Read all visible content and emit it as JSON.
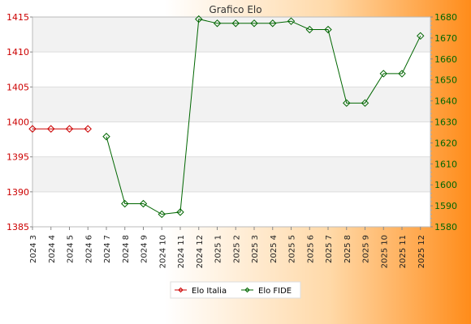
{
  "chart_data": {
    "type": "line",
    "title": "Grafico Elo",
    "categories": [
      "2024 3",
      "2024 4",
      "2024 5",
      "2024 6",
      "2024 7",
      "2024 8",
      "2024 9",
      "2024 10",
      "2024 11",
      "2024 12",
      "2025 1",
      "2025 2",
      "2025 3",
      "2025 4",
      "2025 5",
      "2025 6",
      "2025 7",
      "2025 8",
      "2025 9",
      "2025 10",
      "2025 11",
      "2025 12"
    ],
    "y_left": {
      "min": 1385,
      "max": 1415,
      "ticks": [
        1385,
        1390,
        1395,
        1400,
        1405,
        1410,
        1415
      ]
    },
    "y_right": {
      "min": 1580,
      "max": 1680,
      "ticks": [
        1580,
        1590,
        1600,
        1610,
        1620,
        1630,
        1640,
        1650,
        1660,
        1670,
        1680
      ]
    },
    "series": [
      {
        "name": "Elo Italia",
        "axis": "left",
        "color": "#cc0000",
        "values": [
          1399,
          1399,
          1399,
          1399,
          null,
          null,
          null,
          null,
          null,
          null,
          null,
          null,
          null,
          null,
          null,
          null,
          null,
          null,
          null,
          null,
          null,
          null
        ]
      },
      {
        "name": "Elo FIDE",
        "axis": "right",
        "color": "#006600",
        "values": [
          null,
          null,
          null,
          null,
          1623,
          1591,
          1591,
          1586,
          1587,
          1679,
          1677,
          1677,
          1677,
          1677,
          1678,
          1674,
          1674,
          1639,
          1639,
          1653,
          1653,
          1671
        ]
      }
    ],
    "grid": true,
    "legend": "bottom-center"
  }
}
